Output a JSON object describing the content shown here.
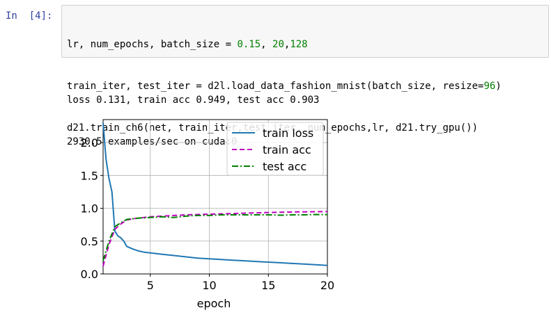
{
  "cell": {
    "prompt": "In  [4]:",
    "code_lines": [
      [
        {
          "t": "lr, num_epochs, batch_size = "
        },
        {
          "t": "0.15",
          "c": "num"
        },
        {
          "t": ", "
        },
        {
          "t": "20",
          "c": "num"
        },
        {
          "t": ","
        },
        {
          "t": "128",
          "c": "num"
        }
      ],
      [
        {
          "t": "train_iter, test_iter = d2l.load_data_fashion_mnist(batch_size, resize="
        },
        {
          "t": "96",
          "c": "num"
        },
        {
          "t": ")"
        }
      ],
      [
        {
          "t": "d21.train_ch6(net, train_iter,test_iter, num_epochs,lr, d21.try_gpu())"
        }
      ]
    ]
  },
  "output": {
    "line1": "loss 0.131, train acc 0.949, test acc 0.903",
    "line2": "2930.5 examples/sec on cuda:0"
  },
  "chart_data": {
    "type": "line",
    "xlabel": "epoch",
    "ylabel": "",
    "xlim": [
      1,
      20
    ],
    "ylim": [
      0,
      2.35
    ],
    "xticks": [
      5,
      10,
      15,
      20
    ],
    "yticks": [
      0.0,
      0.5,
      1.0,
      1.5,
      2.0
    ],
    "grid": true,
    "legend_position": "top-right",
    "series": [
      {
        "name": "train loss",
        "color": "#1f77b4",
        "style": "solid",
        "x": [
          1.0,
          1.25,
          1.5,
          1.75,
          2.0,
          2.25,
          2.5,
          2.75,
          3.0,
          3.25,
          3.5,
          4.0,
          4.5,
          5.0,
          5.5,
          6.0,
          7.0,
          8.0,
          9.0,
          10.0,
          11.0,
          12.0,
          13.0,
          14.0,
          15.0,
          16.0,
          17.0,
          18.0,
          19.0,
          20.0
        ],
        "y": [
          2.3,
          1.75,
          1.45,
          1.25,
          0.65,
          0.58,
          0.55,
          0.5,
          0.42,
          0.4,
          0.38,
          0.35,
          0.33,
          0.32,
          0.31,
          0.3,
          0.28,
          0.26,
          0.24,
          0.23,
          0.22,
          0.21,
          0.2,
          0.19,
          0.18,
          0.17,
          0.16,
          0.15,
          0.14,
          0.13
        ]
      },
      {
        "name": "train acc",
        "color": "#bf00bf",
        "style": "dashed",
        "x": [
          1.0,
          1.5,
          2.0,
          2.5,
          3.0,
          3.5,
          4.0,
          5.0,
          6.0,
          7.0,
          8.0,
          9.0,
          10.0,
          11.0,
          12.0,
          13.0,
          14.0,
          15.0,
          16.0,
          17.0,
          18.0,
          19.0,
          20.0
        ],
        "y": [
          0.12,
          0.45,
          0.68,
          0.76,
          0.82,
          0.84,
          0.85,
          0.87,
          0.88,
          0.89,
          0.9,
          0.905,
          0.91,
          0.915,
          0.92,
          0.925,
          0.93,
          0.935,
          0.94,
          0.942,
          0.945,
          0.947,
          0.949
        ]
      },
      {
        "name": "test acc",
        "color": "#008000",
        "style": "dashdot",
        "x": [
          1.0,
          1.5,
          2.0,
          2.5,
          3.0,
          3.5,
          4.0,
          5.0,
          6.0,
          7.0,
          8.0,
          9.0,
          10.0,
          11.0,
          12.0,
          13.0,
          14.0,
          15.0,
          16.0,
          17.0,
          18.0,
          19.0,
          20.0
        ],
        "y": [
          0.2,
          0.5,
          0.72,
          0.78,
          0.83,
          0.84,
          0.85,
          0.86,
          0.87,
          0.86,
          0.88,
          0.89,
          0.89,
          0.9,
          0.9,
          0.9,
          0.9,
          0.9,
          0.895,
          0.9,
          0.9,
          0.905,
          0.903
        ]
      }
    ]
  }
}
